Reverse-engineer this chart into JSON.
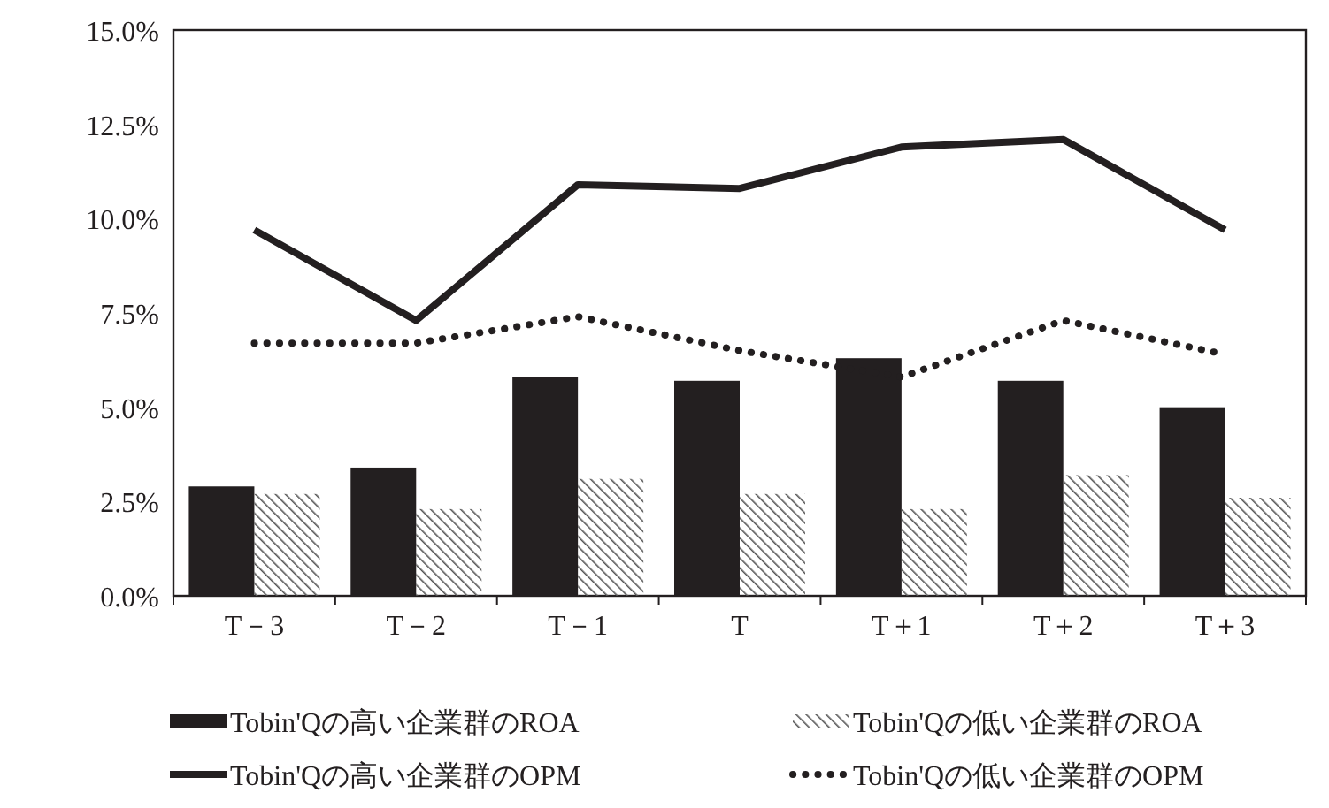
{
  "chart_data": {
    "type": "bar",
    "categories": [
      "T－3",
      "T－2",
      "T－1",
      "T",
      "T＋1",
      "T＋2",
      "T＋3"
    ],
    "series": [
      {
        "name": "Tobin'Qの高い企業群のROA",
        "color": "#231f20",
        "values": [
          2.9,
          3.4,
          5.8,
          5.7,
          6.3,
          5.7,
          5.0
        ]
      },
      {
        "name": "Tobin'Qの低い企業群のROA",
        "color": "#555555",
        "values": [
          2.7,
          2.3,
          3.1,
          2.7,
          2.3,
          3.2,
          2.6
        ]
      },
      {
        "name": "Tobin'Qの高い企業群のOPM",
        "type": "line",
        "color": "#231f20",
        "line_style": "solid",
        "values": [
          9.7,
          7.3,
          10.9,
          10.8,
          11.9,
          12.1,
          9.7
        ]
      },
      {
        "name": "Tobin'Qの低い企業群のOPM",
        "type": "line",
        "color": "#231f20",
        "line_style": "dotted",
        "values": [
          6.7,
          6.7,
          7.4,
          6.5,
          5.8,
          7.3,
          6.4
        ]
      }
    ],
    "ylim": [
      0,
      15
    ],
    "yticks": [
      {
        "value": 0,
        "label": "0.0%"
      },
      {
        "value": 2.5,
        "label": "2.5%"
      },
      {
        "value": 5,
        "label": "5.0%"
      },
      {
        "value": 7.5,
        "label": "7.5%"
      },
      {
        "value": 10,
        "label": "10.0%"
      },
      {
        "value": 12.5,
        "label": "12.5%"
      },
      {
        "value": 15,
        "label": "15.0%"
      }
    ],
    "grid": false,
    "legend": "bottom"
  }
}
